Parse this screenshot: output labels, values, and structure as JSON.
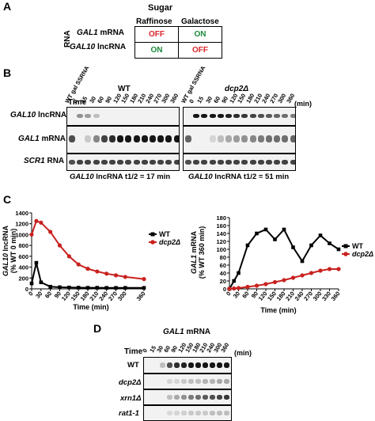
{
  "panelA": {
    "label": "A",
    "header": "Sugar",
    "col_headers": [
      "Raffinose",
      "Galactose"
    ],
    "row_axis": "RNA",
    "rows": [
      {
        "name": "GAL1",
        "suffix": " mRNA",
        "cells": [
          "OFF",
          "ON"
        ]
      },
      {
        "name": "GAL10",
        "suffix": " lncRNA",
        "cells": [
          "ON",
          "OFF"
        ]
      }
    ],
    "off_color": "#d9262b",
    "on_color": "#1a8a3a"
  },
  "panelB": {
    "label": "B",
    "wt_title": "WT",
    "mut_title": "dcp2Δ",
    "time_label": "Time",
    "lane_labels": [
      "WT gal SSRNA",
      "0",
      "15",
      "30",
      "60",
      "90",
      "120",
      "150",
      "180",
      "210",
      "240",
      "270",
      "300",
      "360"
    ],
    "unit": "(min)",
    "rows": [
      {
        "name": "GAL10",
        "suffix": " lncRNA"
      },
      {
        "name": "GAL1",
        "suffix": " mRNA"
      },
      {
        "name": "SCR1",
        "suffix": " RNA"
      }
    ],
    "wt_half_life": {
      "name": "GAL10",
      "text": " lncRNA t1/2 = 17 min"
    },
    "mut_half_life": {
      "name": "GAL10",
      "text": " lncRNA t1/2 = 51 min"
    }
  },
  "panelC": {
    "label": "C",
    "left": {
      "ylabel_name": "GAL10",
      "ylabel_rest": " lncRNA",
      "ylabel_line2": "(% WT 0 min)",
      "xlabel": "Time (min)",
      "yticks": [
        "0",
        "200",
        "400",
        "600",
        "800",
        "1000",
        "1200",
        "1400"
      ],
      "xticks": [
        "0",
        "30",
        "60",
        "90",
        "120",
        "150",
        "180",
        "210",
        "240",
        "270",
        "300",
        "360"
      ]
    },
    "right": {
      "ylabel_name": "GAL1",
      "ylabel_rest": " mRNA",
      "ylabel_line2": "(% WT 360 min)",
      "xlabel": "Time (min)",
      "yticks": [
        "0",
        "20",
        "40",
        "60",
        "80",
        "100",
        "120",
        "140",
        "160",
        "180"
      ],
      "xticks": [
        "0",
        "30",
        "60",
        "90",
        "120",
        "150",
        "180",
        "210",
        "240",
        "270",
        "300",
        "330",
        "360"
      ]
    },
    "legend": {
      "wt": "WT",
      "mut": "dcp2Δ"
    },
    "colors": {
      "wt": "#000000",
      "mut": "#c8221f"
    }
  },
  "panelD": {
    "label": "D",
    "title_name": "GAL1",
    "title_rest": " mRNA",
    "time_label": "Time",
    "lane_labels": [
      "0",
      "15",
      "30",
      "60",
      "90",
      "120",
      "150",
      "180",
      "210",
      "240",
      "300",
      "360"
    ],
    "unit": "(min)",
    "rows": [
      "WT",
      "dcp2Δ",
      "xrn1Δ",
      "rat1-1"
    ]
  },
  "chart_data": [
    {
      "type": "line",
      "title": "",
      "xlabel": "Time (min)",
      "ylabel": "GAL10 lncRNA (% WT 0 min)",
      "x": [
        0,
        15,
        30,
        60,
        90,
        120,
        150,
        180,
        210,
        240,
        270,
        300,
        360
      ],
      "xlim": [
        0,
        360
      ],
      "ylim": [
        0,
        1400
      ],
      "series": [
        {
          "name": "WT",
          "values": [
            100,
            480,
            120,
            40,
            30,
            25,
            22,
            20,
            20,
            18,
            18,
            18,
            18
          ]
        },
        {
          "name": "dcp2Δ",
          "values": [
            1000,
            1250,
            1220,
            1050,
            800,
            600,
            450,
            370,
            320,
            280,
            250,
            220,
            180
          ]
        }
      ],
      "legend": "right"
    },
    {
      "type": "line",
      "title": "",
      "xlabel": "Time (min)",
      "ylabel": "GAL1 mRNA (% WT 360 min)",
      "x": [
        0,
        15,
        30,
        60,
        90,
        120,
        150,
        180,
        210,
        240,
        270,
        300,
        330,
        360
      ],
      "xlim": [
        0,
        360
      ],
      "ylim": [
        0,
        180
      ],
      "series": [
        {
          "name": "WT",
          "values": [
            0,
            20,
            40,
            110,
            140,
            150,
            125,
            150,
            105,
            70,
            110,
            135,
            115,
            100
          ]
        },
        {
          "name": "dcp2Δ",
          "values": [
            0,
            1,
            2,
            5,
            8,
            12,
            17,
            22,
            28,
            34,
            40,
            46,
            50,
            50
          ]
        }
      ],
      "legend": "right"
    }
  ]
}
